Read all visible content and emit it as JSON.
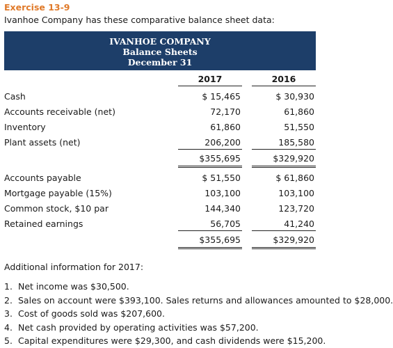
{
  "exercise_title": "Exercise 13-9",
  "intro": "Ivanhoe Company has these comparative balance sheet data:",
  "banner": {
    "company": "IVANHOE COMPANY",
    "statement": "Balance Sheets",
    "date": "December 31"
  },
  "columns": [
    "2017",
    "2016"
  ],
  "assets": [
    {
      "label": "Cash",
      "y2017": "$ 15,465",
      "y2016": "$ 30,930"
    },
    {
      "label": "Accounts receivable (net)",
      "y2017": "72,170",
      "y2016": "61,860"
    },
    {
      "label": "Inventory",
      "y2017": "61,860",
      "y2016": "51,550"
    },
    {
      "label": "Plant assets (net)",
      "y2017": "206,200",
      "y2016": "185,580"
    }
  ],
  "assets_total": {
    "y2017": "$355,695",
    "y2016": "$329,920"
  },
  "liabilities": [
    {
      "label": "Accounts payable",
      "y2017": "$ 51,550",
      "y2016": "$ 61,860"
    },
    {
      "label": "Mortgage payable (15%)",
      "y2017": "103,100",
      "y2016": "103,100"
    },
    {
      "label": "Common stock, $10 par",
      "y2017": "144,340",
      "y2016": "123,720"
    },
    {
      "label": "Retained earnings",
      "y2017": "56,705",
      "y2016": "41,240"
    }
  ],
  "liabilities_total": {
    "y2017": "$355,695",
    "y2016": "$329,920"
  },
  "additional_heading": "Additional information for 2017:",
  "additional_items": [
    {
      "num": "1.",
      "text": "Net income was $30,500."
    },
    {
      "num": "2.",
      "text": "Sales on account were $393,100. Sales returns and allowances amounted to $28,000."
    },
    {
      "num": "3.",
      "text": "Cost of goods sold was $207,600."
    },
    {
      "num": "4.",
      "text": "Net cash provided by operating activities was $57,200."
    },
    {
      "num": "5.",
      "text": "Capital expenditures were $29,300, and cash dividends were $15,200."
    }
  ]
}
